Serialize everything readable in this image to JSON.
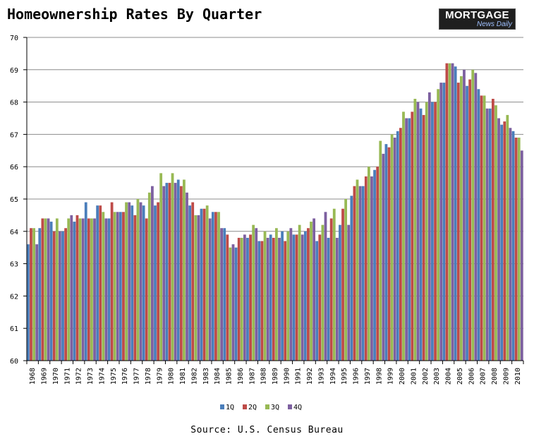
{
  "logo": {
    "line1": "MORTGAGE",
    "line2": "News Daily"
  },
  "source": "Source: U.S. Census Bureau",
  "colors": {
    "q1": "#4a7ebb",
    "q2": "#be4b48",
    "q3": "#98b954",
    "q4": "#7d60a0",
    "grid": "#8c8c8c",
    "axis": "#000000"
  },
  "chart_data": {
    "type": "bar",
    "title": "Homeownership Rates By Quarter",
    "xlabel": "",
    "ylabel": "",
    "ylim": [
      60,
      70
    ],
    "yticks": [
      60,
      61,
      62,
      63,
      64,
      65,
      66,
      67,
      68,
      69,
      70
    ],
    "grid": true,
    "legend_position": "bottom",
    "categories": [
      "1968",
      "1969",
      "1970",
      "1971",
      "1972",
      "1973",
      "1974",
      "1975",
      "1976",
      "1977",
      "1978",
      "1979",
      "1980",
      "1981",
      "1982",
      "1983",
      "1984",
      "1985",
      "1986",
      "1987",
      "1988",
      "1989",
      "1990",
      "1991",
      "1992",
      "1993",
      "1994",
      "1995",
      "1996",
      "1997",
      "1998",
      "1999",
      "2000",
      "2001",
      "2002",
      "2003",
      "2004",
      "2005",
      "2006",
      "2007",
      "2008",
      "2009",
      "2010"
    ],
    "series": [
      {
        "name": "1Q",
        "values": [
          63.6,
          64.1,
          64.3,
          64.0,
          64.3,
          64.9,
          64.8,
          64.4,
          64.6,
          64.8,
          64.8,
          64.8,
          65.5,
          65.6,
          64.8,
          64.7,
          64.6,
          64.1,
          63.5,
          63.8,
          63.7,
          63.9,
          64.0,
          63.9,
          64.0,
          63.7,
          63.8,
          64.2,
          65.1,
          65.4,
          65.9,
          66.7,
          67.1,
          67.5,
          67.8,
          68.0,
          68.6,
          69.1,
          68.5,
          68.4,
          67.8,
          67.3,
          67.1
        ]
      },
      {
        "name": "2Q",
        "values": [
          64.1,
          64.4,
          64.0,
          64.1,
          64.5,
          64.4,
          64.8,
          64.9,
          64.6,
          64.5,
          64.4,
          64.9,
          65.5,
          65.4,
          64.9,
          64.7,
          64.6,
          63.9,
          63.8,
          63.9,
          63.7,
          63.8,
          63.7,
          63.9,
          64.1,
          63.9,
          64.4,
          64.7,
          65.4,
          65.7,
          66.0,
          66.6,
          67.2,
          67.7,
          67.6,
          68.0,
          69.2,
          68.6,
          68.7,
          68.2,
          68.1,
          67.4,
          66.9
        ]
      },
      {
        "name": "3Q",
        "values": [
          64.1,
          64.4,
          64.4,
          64.4,
          64.4,
          64.4,
          64.6,
          64.6,
          64.9,
          65.0,
          65.2,
          65.8,
          65.8,
          65.6,
          64.5,
          64.8,
          64.6,
          63.5,
          63.8,
          64.2,
          64.0,
          64.1,
          64.0,
          64.2,
          64.3,
          64.2,
          64.7,
          65.0,
          65.6,
          66.0,
          66.8,
          67.0,
          67.7,
          68.1,
          68.0,
          68.4,
          69.2,
          68.8,
          69.0,
          68.2,
          67.9,
          67.6,
          66.9
        ]
      },
      {
        "name": "4Q",
        "values": [
          63.6,
          64.4,
          64.0,
          64.5,
          64.4,
          64.4,
          64.4,
          64.6,
          64.9,
          64.9,
          65.4,
          65.4,
          65.5,
          65.2,
          64.5,
          64.4,
          64.1,
          63.6,
          63.9,
          64.1,
          63.8,
          63.8,
          64.1,
          63.9,
          64.4,
          64.6,
          63.8,
          64.2,
          65.4,
          65.7,
          66.4,
          66.9,
          67.5,
          68.0,
          68.3,
          68.6,
          69.2,
          69.0,
          68.9,
          67.8,
          67.5,
          67.2,
          66.5
        ]
      }
    ]
  }
}
